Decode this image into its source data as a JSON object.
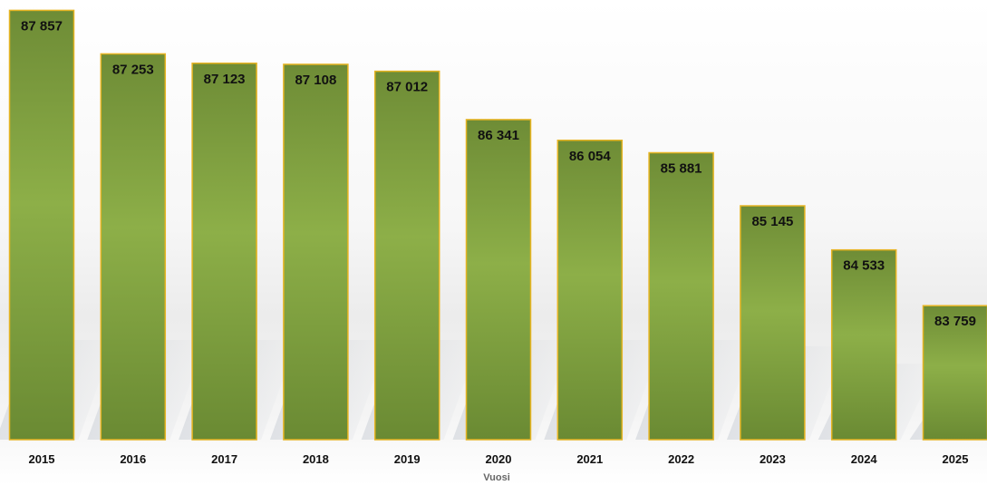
{
  "chart_data": {
    "type": "bar",
    "categories": [
      "2015",
      "2016",
      "2017",
      "2018",
      "2019",
      "2020",
      "2021",
      "2022",
      "2023",
      "2024",
      "2025"
    ],
    "values": [
      87857,
      87253,
      87123,
      87108,
      87012,
      86341,
      86054,
      85881,
      85145,
      84533,
      83759
    ],
    "value_labels": [
      "87 857",
      "87 253",
      "87 123",
      "87 108",
      "87 012",
      "86 341",
      "86 054",
      "85 881",
      "85 145",
      "84 533",
      "83 759"
    ],
    "title": "",
    "xlabel": "Vuosi",
    "ylabel": "",
    "ylim": [
      81900,
      87900
    ],
    "grid": false,
    "legend": "none",
    "colors": {
      "bar_dark": "#6e8c36",
      "bar_light": "#8daf48",
      "bar_border": "#e6b422",
      "shadow": "#c5cad2"
    }
  }
}
